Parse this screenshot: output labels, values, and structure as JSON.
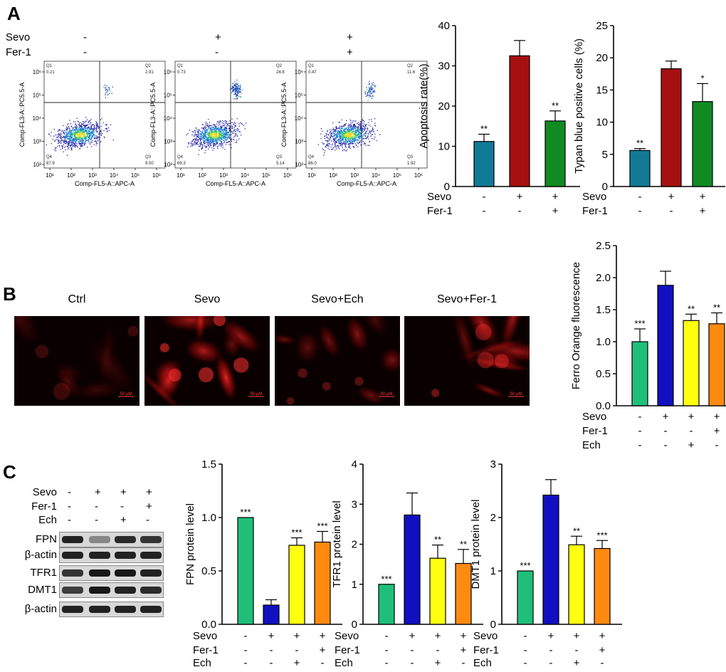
{
  "panels": {
    "a": "A",
    "b": "B",
    "c": "C"
  },
  "flow": {
    "row_labels": [
      "Sevo",
      "Fer-1"
    ],
    "conditions": [
      {
        "sevo": "-",
        "fer1": "-",
        "q1": "0.21",
        "q2": "2.91",
        "q3": "9.00",
        "q4": "87.9"
      },
      {
        "sevo": "+",
        "fer1": "-",
        "q1": "0.73",
        "q2": "24.8",
        "q3": "5.14",
        "q4": "69.3"
      },
      {
        "sevo": "+",
        "fer1": "+",
        "q1": "0.47",
        "q2": "11.6",
        "q3": "1.92",
        "q4": "86.0"
      }
    ],
    "quadrant_names": [
      "Q1",
      "Q2",
      "Q3",
      "Q4"
    ],
    "ytick_labels": [
      "10²",
      "10³",
      "10⁴",
      "10⁵",
      "10⁶"
    ],
    "xtick_labels": [
      "10¹",
      "10²",
      "10³",
      "10⁴",
      "10⁵",
      "10⁶"
    ],
    "ylabel": "Comp-FL3-A::PC5.5-A",
    "xlabel": "Comp-FL5-A::APC-A"
  },
  "micro": {
    "titles": [
      "Ctrl",
      "Sevo",
      "Sevo+Ech",
      "Sevo+Fer-1"
    ],
    "scale_bar": "50 μM"
  },
  "blot": {
    "conditions": [
      {
        "sevo": "-",
        "fer1": "-",
        "ech": "-"
      },
      {
        "sevo": "+",
        "fer1": "-",
        "ech": "-"
      },
      {
        "sevo": "+",
        "fer1": "-",
        "ech": "+"
      },
      {
        "sevo": "+",
        "fer1": "+",
        "ech": "-"
      }
    ],
    "cond_labels": [
      "Sevo",
      "Fer-1",
      "Ech"
    ],
    "bands": [
      {
        "name": "FPN",
        "intensity": [
          0.9,
          0.35,
          0.85,
          0.8
        ]
      },
      {
        "name": "β-actin",
        "intensity": [
          0.9,
          0.9,
          0.9,
          0.9
        ]
      },
      {
        "name": "TFR1",
        "intensity": [
          0.8,
          0.95,
          0.95,
          0.9
        ]
      },
      {
        "name": "DMT1",
        "intensity": [
          0.75,
          0.95,
          0.9,
          0.85
        ]
      },
      {
        "name": "β-actin",
        "intensity": [
          0.9,
          0.9,
          0.9,
          0.9
        ]
      }
    ]
  },
  "chart_data": [
    {
      "id": "apoptosis",
      "type": "bar",
      "ylabel": "Apoptosis rate(%)",
      "ylim": [
        0,
        40
      ],
      "yticks": [
        0,
        10,
        20,
        30,
        40
      ],
      "values": [
        11.2,
        32.5,
        16.3
      ],
      "errors": [
        1.8,
        3.8,
        2.5
      ],
      "sig": [
        "**",
        "",
        "**"
      ],
      "colors": [
        "#127a96",
        "#a61010",
        "#118a22"
      ],
      "cond_labels": [
        "Sevo",
        "Fer-1"
      ],
      "conditions": [
        [
          "-",
          "+",
          "+"
        ],
        [
          "-",
          "-",
          "+"
        ]
      ]
    },
    {
      "id": "trypan",
      "type": "bar",
      "ylabel": "Typan blue positive cells (%)",
      "ylim": [
        0,
        25
      ],
      "yticks": [
        0,
        5,
        10,
        15,
        20,
        25
      ],
      "values": [
        5.6,
        18.3,
        13.2
      ],
      "errors": [
        0.3,
        1.2,
        2.8
      ],
      "sig": [
        "**",
        "",
        "*"
      ],
      "colors": [
        "#127a96",
        "#a61010",
        "#118a22"
      ],
      "cond_labels": [
        "Sevo",
        "Fer-1"
      ],
      "conditions": [
        [
          "-",
          "+",
          "+"
        ],
        [
          "-",
          "-",
          "+"
        ]
      ]
    },
    {
      "id": "ferro",
      "type": "bar",
      "ylabel": "Ferro Orange fluorescence",
      "ylim": [
        0,
        2.5
      ],
      "yticks": [
        "0.0",
        "0.5",
        "1.0",
        "1.5",
        "2.0",
        "2.5"
      ],
      "values": [
        1.0,
        1.88,
        1.33,
        1.28
      ],
      "errors": [
        0.2,
        0.22,
        0.1,
        0.17
      ],
      "sig": [
        "***",
        "",
        "**",
        "**"
      ],
      "colors": [
        "#1fbf7a",
        "#1010c0",
        "#ffff10",
        "#ff8a10"
      ],
      "cond_labels": [
        "Sevo",
        "Fer-1",
        "Ech"
      ],
      "conditions": [
        [
          "-",
          "+",
          "+",
          "+"
        ],
        [
          "-",
          "-",
          "-",
          "+"
        ],
        [
          "-",
          "-",
          "+",
          "-"
        ]
      ]
    },
    {
      "id": "fpn",
      "type": "bar",
      "ylabel": "FPN protein level",
      "ylim": [
        0,
        1.5
      ],
      "yticks": [
        "0.0",
        "0.5",
        "1.0",
        "1.5"
      ],
      "values": [
        1.0,
        0.18,
        0.74,
        0.77
      ],
      "errors": [
        0.0,
        0.05,
        0.07,
        0.1
      ],
      "sig": [
        "***",
        "",
        "***",
        "***"
      ],
      "colors": [
        "#1fbf7a",
        "#1010c0",
        "#ffff10",
        "#ff8a10"
      ],
      "cond_labels": [
        "Sevo",
        "Fer-1",
        "Ech"
      ],
      "conditions": [
        [
          "-",
          "+",
          "+",
          "+"
        ],
        [
          "-",
          "-",
          "-",
          "+"
        ],
        [
          "-",
          "-",
          "+",
          "-"
        ]
      ]
    },
    {
      "id": "tfr1",
      "type": "bar",
      "ylabel": "TFR1 protein level",
      "ylim": [
        0,
        4
      ],
      "yticks": [
        0,
        1,
        2,
        3,
        4
      ],
      "values": [
        1.0,
        2.73,
        1.65,
        1.52
      ],
      "errors": [
        0.0,
        0.55,
        0.33,
        0.35
      ],
      "sig": [
        "***",
        "",
        "**",
        "**"
      ],
      "colors": [
        "#1fbf7a",
        "#1010c0",
        "#ffff10",
        "#ff8a10"
      ],
      "cond_labels": [
        "Sevo",
        "Fer-1",
        "Ech"
      ],
      "conditions": [
        [
          "-",
          "+",
          "+",
          "+"
        ],
        [
          "-",
          "-",
          "-",
          "+"
        ],
        [
          "-",
          "-",
          "+",
          "-"
        ]
      ]
    },
    {
      "id": "dmt1",
      "type": "bar",
      "ylabel": "DMT1 protein level",
      "ylim": [
        0,
        3
      ],
      "yticks": [
        0,
        1,
        2,
        3
      ],
      "values": [
        1.0,
        2.42,
        1.49,
        1.42
      ],
      "errors": [
        0.0,
        0.29,
        0.16,
        0.15
      ],
      "sig": [
        "***",
        "",
        "**",
        "***"
      ],
      "colors": [
        "#1fbf7a",
        "#1010c0",
        "#ffff10",
        "#ff8a10"
      ],
      "cond_labels": [
        "Sevo",
        "Fer-1",
        "Ech"
      ],
      "conditions": [
        [
          "-",
          "+",
          "+",
          "+"
        ],
        [
          "-",
          "-",
          "-",
          "+"
        ],
        [
          "-",
          "-",
          "+",
          "-"
        ]
      ]
    }
  ]
}
